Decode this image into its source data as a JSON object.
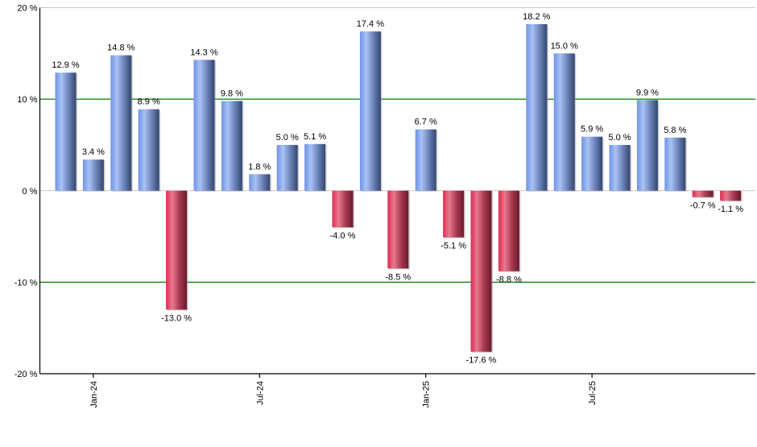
{
  "chart_data": {
    "type": "bar",
    "title": "",
    "xlabel": "",
    "ylabel": "",
    "ylim": [
      -20,
      20
    ],
    "y_ticks": [
      20,
      10,
      0,
      -10,
      -20
    ],
    "y_tick_labels": [
      "20 %",
      "10 %",
      "0 %",
      "-10 %",
      "-20 %"
    ],
    "x_tick_labels": [
      "Jan-24",
      "Jul-24",
      "Jan-25",
      "Jul-25"
    ],
    "categories": [
      "",
      "Jan-24",
      "",
      "",
      "",
      "",
      "",
      "Jul-24",
      "",
      "",
      "",
      "",
      "",
      "Jan-25",
      "",
      "",
      "",
      "",
      "",
      "Jul-25",
      "",
      "",
      "",
      "",
      ""
    ],
    "values": [
      12.9,
      3.4,
      14.8,
      8.9,
      -13.0,
      14.3,
      9.8,
      1.8,
      5.0,
      5.1,
      -4.0,
      17.4,
      -8.5,
      6.7,
      -5.1,
      -17.6,
      -8.8,
      18.2,
      15.0,
      5.9,
      5.0,
      9.9,
      5.8,
      -0.7,
      -1.1
    ],
    "data_labels": [
      "12.9 %",
      "3.4 %",
      "14.8 %",
      "8.9 %",
      "-13.0 %",
      "14.3 %",
      "9.8 %",
      "1.8 %",
      "5.0 %",
      "5.1 %",
      "-4.0 %",
      "17.4 %",
      "-8.5 %",
      "6.7 %",
      "-5.1 %",
      "-17.6 %",
      "-8.8 %",
      "18.2 %",
      "15.0 %",
      "5.9 %",
      "5.0 %",
      "9.9 %",
      "5.8 %",
      "-0.7 %",
      "-1.1 %"
    ],
    "grid": true,
    "highlight_gridlines": [
      10,
      -10
    ],
    "colors": {
      "positive": "#7a9ee8",
      "negative": "#d8365a",
      "highlight_grid": "#008000",
      "grid": "#c8c8c8"
    }
  }
}
